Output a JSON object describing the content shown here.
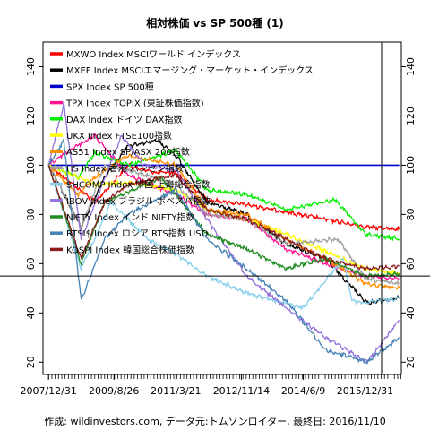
{
  "chart_data": {
    "type": "line",
    "title": "相対株価 vs SP 500種 (1)",
    "caption": "作成: wildinvestors.com, データ元:トムソンロイター, 最終日: 2016/11/10",
    "x_tick_labels": [
      "2007/12/31",
      "2009/8/26",
      "2011/3/21",
      "2012/11/14",
      "2014/6/9",
      "2015/12/31"
    ],
    "x_tick_dates": [
      "2007-12-31",
      "2009-08-26",
      "2011-03-21",
      "2012-11-14",
      "2014-06-09",
      "2015-12-31"
    ],
    "xlim": [
      "2007-11-10",
      "2016-11-30"
    ],
    "ylim": [
      15,
      150
    ],
    "y_ticks": [
      20,
      40,
      60,
      80,
      100,
      120,
      140
    ],
    "reference_lines": {
      "horizontal": 55,
      "vertical_date": "2016-06-01"
    },
    "legend_position": "top-left",
    "grid": false,
    "series": [
      {
        "name": "MXWO Index MSCIワールド インデックス",
        "color": "#ff0000",
        "points": [
          [
            "2007-12-31",
            100
          ],
          [
            "2008-10-15",
            90
          ],
          [
            "2009-03-09",
            85
          ],
          [
            "2010-01-01",
            100
          ],
          [
            "2010-09-01",
            97
          ],
          [
            "2011-03-21",
            97
          ],
          [
            "2012-01-01",
            86
          ],
          [
            "2013-01-01",
            84
          ],
          [
            "2014-01-01",
            81
          ],
          [
            "2015-01-01",
            78
          ],
          [
            "2016-01-01",
            75
          ],
          [
            "2016-11-10",
            74
          ]
        ]
      },
      {
        "name": "MXEF Index MSCIエマージング・マーケット・インデックス",
        "color": "#000000",
        "points": [
          [
            "2007-12-31",
            100
          ],
          [
            "2008-10-27",
            75
          ],
          [
            "2009-06-01",
            95
          ],
          [
            "2010-01-01",
            108
          ],
          [
            "2010-10-01",
            110
          ],
          [
            "2011-03-21",
            104
          ],
          [
            "2012-01-01",
            85
          ],
          [
            "2013-01-01",
            80
          ],
          [
            "2014-01-01",
            68
          ],
          [
            "2015-01-01",
            62
          ],
          [
            "2016-01-20",
            44
          ],
          [
            "2016-11-10",
            46
          ]
        ]
      },
      {
        "name": "SPX Index SP 500種",
        "color": "#0000cc",
        "points": [
          [
            "2007-12-31",
            100
          ],
          [
            "2016-11-10",
            100
          ]
        ]
      },
      {
        "name": "TPX Index TOPIX (東証株価指数)",
        "color": "#ff1493",
        "points": [
          [
            "2007-12-31",
            100
          ],
          [
            "2008-06-01",
            105
          ],
          [
            "2009-03-01",
            112
          ],
          [
            "2010-01-01",
            96
          ],
          [
            "2011-03-21",
            88
          ],
          [
            "2012-01-01",
            80
          ],
          [
            "2013-01-01",
            78
          ],
          [
            "2014-01-01",
            66
          ],
          [
            "2015-01-01",
            60
          ],
          [
            "2016-01-01",
            55
          ],
          [
            "2016-11-10",
            54
          ]
        ]
      },
      {
        "name": "DAX Index ドイツ DAX指数",
        "color": "#00ee00",
        "points": [
          [
            "2007-12-31",
            100
          ],
          [
            "2008-10-01",
            95
          ],
          [
            "2009-03-01",
            105
          ],
          [
            "2010-01-01",
            100
          ],
          [
            "2011-03-21",
            106
          ],
          [
            "2012-01-01",
            90
          ],
          [
            "2013-01-01",
            88
          ],
          [
            "2014-01-01",
            82
          ],
          [
            "2015-04-01",
            86
          ],
          [
            "2016-01-01",
            72
          ],
          [
            "2016-11-10",
            70
          ]
        ]
      },
      {
        "name": "UKX Index FTSE100指数",
        "color": "#ffff00",
        "points": [
          [
            "2007-12-31",
            100
          ],
          [
            "2008-10-01",
            95
          ],
          [
            "2009-03-01",
            92
          ],
          [
            "2010-01-01",
            93
          ],
          [
            "2011-03-21",
            90
          ],
          [
            "2012-01-01",
            82
          ],
          [
            "2013-01-01",
            78
          ],
          [
            "2014-01-01",
            72
          ],
          [
            "2015-01-01",
            65
          ],
          [
            "2016-01-01",
            58
          ],
          [
            "2016-11-10",
            56
          ]
        ]
      },
      {
        "name": "AS51 Index SP/ASX 200指数",
        "color": "#ff8c00",
        "points": [
          [
            "2007-12-31",
            100
          ],
          [
            "2008-10-01",
            88
          ],
          [
            "2009-03-01",
            95
          ],
          [
            "2010-01-01",
            104
          ],
          [
            "2011-03-21",
            100
          ],
          [
            "2012-01-01",
            82
          ],
          [
            "2013-01-01",
            80
          ],
          [
            "2014-01-01",
            70
          ],
          [
            "2015-01-01",
            62
          ],
          [
            "2016-01-01",
            52
          ],
          [
            "2016-11-10",
            50
          ]
        ]
      },
      {
        "name": "HS Index 香港 ハンセン指数",
        "color": "#a0a0a0",
        "points": [
          [
            "2007-12-31",
            100
          ],
          [
            "2008-10-27",
            75
          ],
          [
            "2009-06-01",
            100
          ],
          [
            "2010-01-01",
            98
          ],
          [
            "2011-03-21",
            92
          ],
          [
            "2012-01-01",
            80
          ],
          [
            "2013-01-01",
            78
          ],
          [
            "2014-01-01",
            68
          ],
          [
            "2015-04-27",
            70
          ],
          [
            "2016-01-01",
            54
          ],
          [
            "2016-11-10",
            52
          ]
        ]
      },
      {
        "name": "SHCOMP Index 中国 上海総合指数",
        "color": "#87ceeb",
        "points": [
          [
            "2007-12-31",
            100
          ],
          [
            "2008-10-27",
            58
          ],
          [
            "2009-08-01",
            85
          ],
          [
            "2010-07-01",
            70
          ],
          [
            "2011-03-21",
            64
          ],
          [
            "2012-01-01",
            55
          ],
          [
            "2013-01-01",
            48
          ],
          [
            "2014-06-09",
            42
          ],
          [
            "2015-06-12",
            62
          ],
          [
            "2015-09-01",
            45
          ],
          [
            "2016-01-01",
            44
          ],
          [
            "2016-11-10",
            46
          ]
        ]
      },
      {
        "name": "IBOV Index ブラジル ボベスパ指数",
        "color": "#9370db",
        "points": [
          [
            "2007-12-31",
            100
          ],
          [
            "2008-05-20",
            125
          ],
          [
            "2008-10-27",
            70
          ],
          [
            "2009-11-01",
            112
          ],
          [
            "2010-06-01",
            100
          ],
          [
            "2011-03-21",
            98
          ],
          [
            "2012-01-01",
            78
          ],
          [
            "2013-01-01",
            55
          ],
          [
            "2014-01-01",
            42
          ],
          [
            "2015-01-01",
            30
          ],
          [
            "2016-01-20",
            20
          ],
          [
            "2016-11-10",
            37
          ]
        ]
      },
      {
        "name": "NIFTY Index インド NIFTY指数",
        "color": "#228b22",
        "points": [
          [
            "2007-12-31",
            100
          ],
          [
            "2008-10-27",
            60
          ],
          [
            "2009-06-01",
            85
          ],
          [
            "2010-11-01",
            95
          ],
          [
            "2011-03-21",
            88
          ],
          [
            "2012-01-01",
            72
          ],
          [
            "2013-01-01",
            66
          ],
          [
            "2014-01-01",
            58
          ],
          [
            "2015-01-01",
            62
          ],
          [
            "2016-01-01",
            55
          ],
          [
            "2016-11-10",
            56
          ]
        ]
      },
      {
        "name": "RTSI$ Index ロシア RTS指数 USD",
        "color": "#4682b4",
        "points": [
          [
            "2007-12-31",
            100
          ],
          [
            "2008-05-20",
            110
          ],
          [
            "2008-10-27",
            45
          ],
          [
            "2009-06-01",
            70
          ],
          [
            "2010-01-01",
            80
          ],
          [
            "2011-03-21",
            90
          ],
          [
            "2012-01-01",
            70
          ],
          [
            "2013-01-01",
            58
          ],
          [
            "2014-01-01",
            45
          ],
          [
            "2015-01-01",
            25
          ],
          [
            "2016-01-20",
            20
          ],
          [
            "2016-11-10",
            30
          ]
        ]
      },
      {
        "name": "KOSPI Index 韓国総合株価指数",
        "color": "#8b1a1a",
        "points": [
          [
            "2007-12-31",
            100
          ],
          [
            "2008-10-27",
            62
          ],
          [
            "2009-06-01",
            85
          ],
          [
            "2010-01-01",
            92
          ],
          [
            "2011-03-21",
            96
          ],
          [
            "2012-01-01",
            82
          ],
          [
            "2013-01-01",
            78
          ],
          [
            "2014-01-01",
            70
          ],
          [
            "2015-01-01",
            62
          ],
          [
            "2016-01-01",
            58
          ],
          [
            "2016-11-10",
            59
          ]
        ]
      }
    ]
  }
}
